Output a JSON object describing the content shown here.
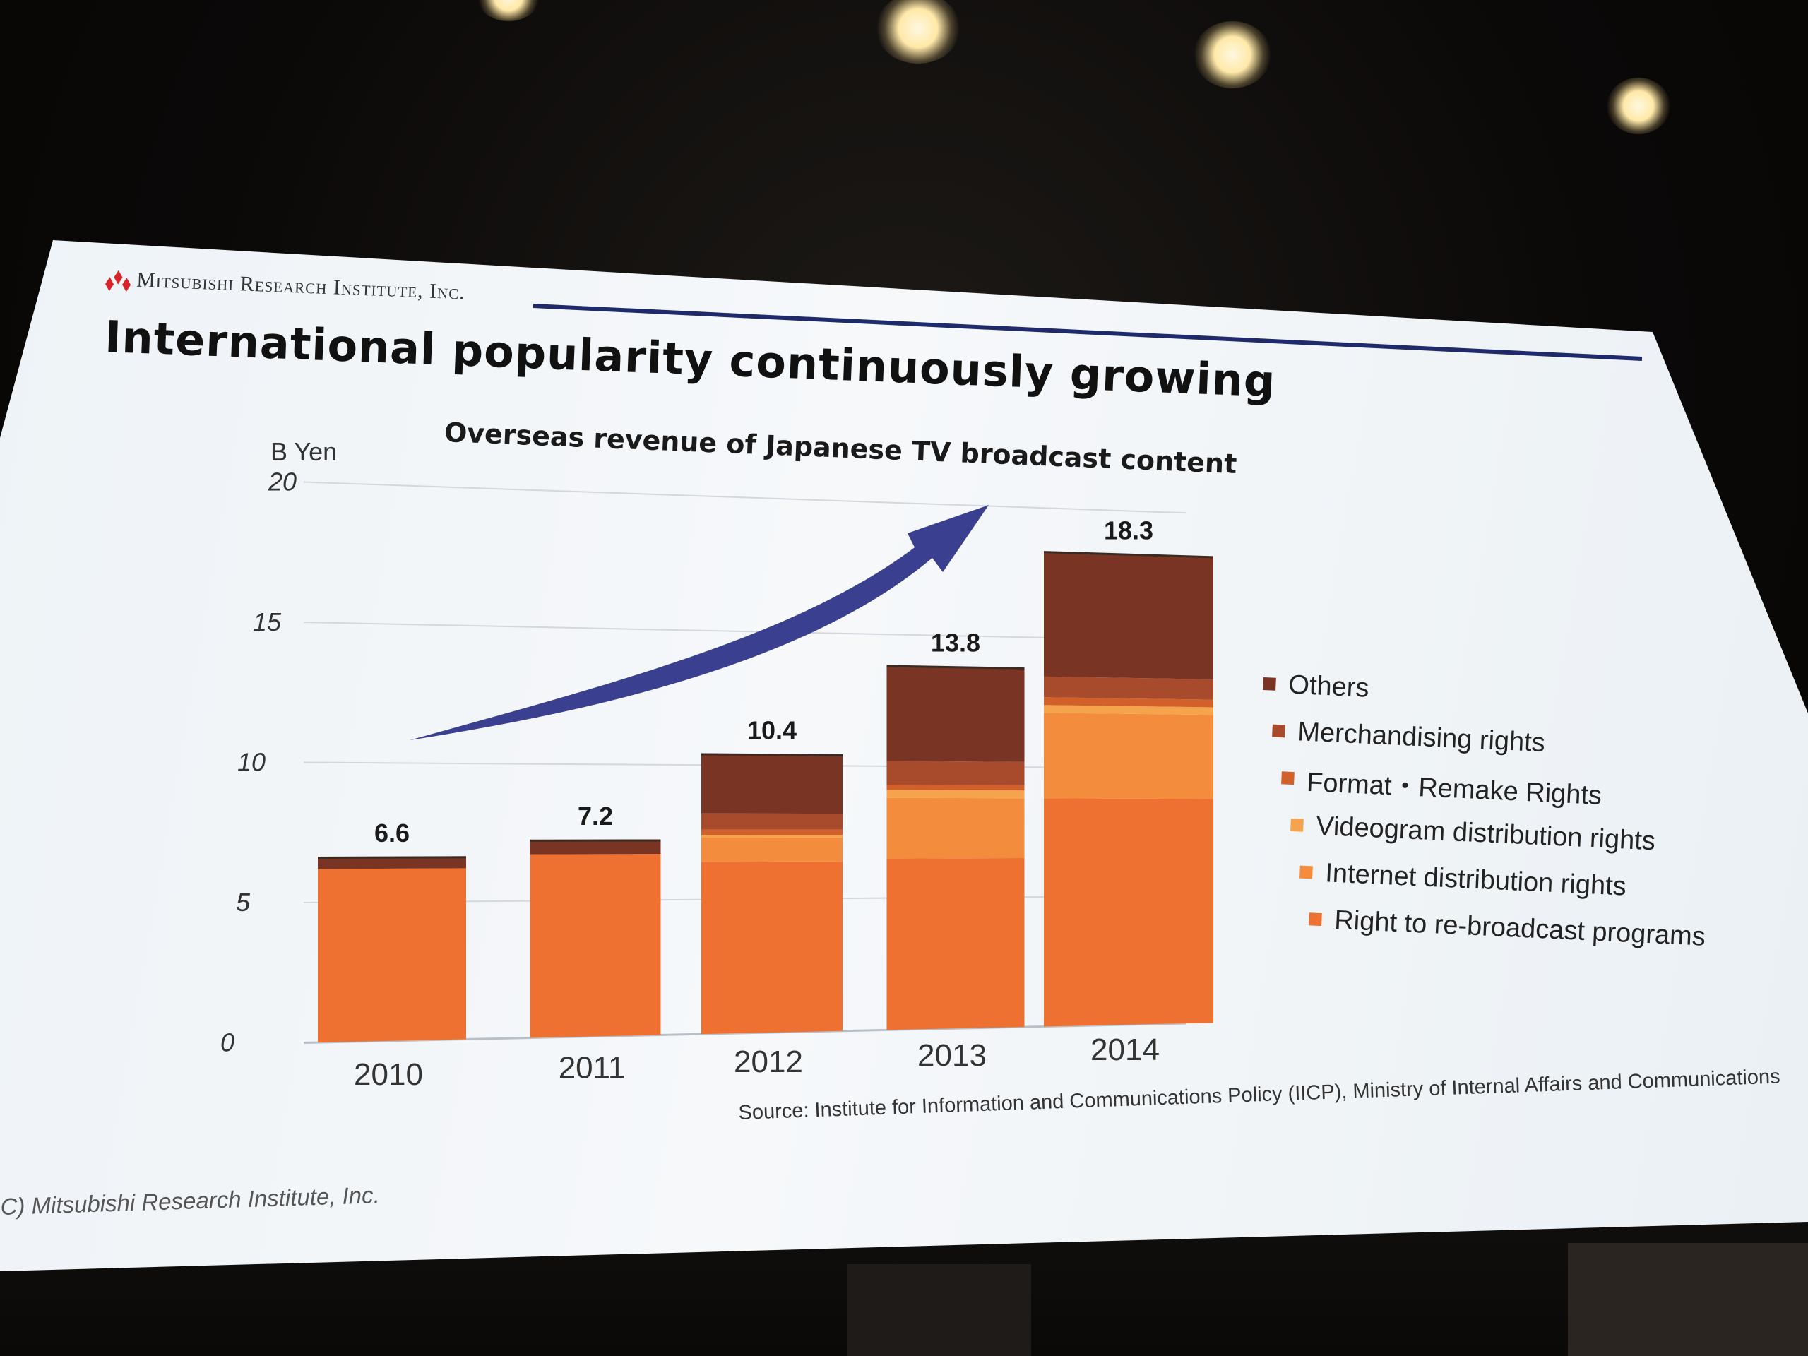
{
  "slide": {
    "brand": "Mitsubishi Research Institute, Inc.",
    "headline": "International popularity continuously growing",
    "source": "Source: Institute for Information and Communications Policy (IICP), Ministry of Internal Affairs and Communications",
    "copyright": "C) Mitsubishi Research Institute, Inc."
  },
  "chart_data": {
    "type": "bar",
    "stacked": true,
    "title": "Overseas revenue of Japanese TV broadcast content",
    "ylabel": "B Yen",
    "xlabel": "",
    "ylim": [
      0,
      20
    ],
    "yticks": [
      "0",
      "5",
      "10",
      "15",
      "20"
    ],
    "categories": [
      "2010",
      "2011",
      "2012",
      "2013",
      "2014"
    ],
    "totals": [
      "6.6",
      "7.2",
      "10.4",
      "13.8",
      "18.3"
    ],
    "series": [
      {
        "name": "Right to re-broadcast programs",
        "values": [
          6.2,
          6.7,
          6.4,
          6.5,
          8.8
        ],
        "color": "#ee7132"
      },
      {
        "name": "Internet distribution rights",
        "values": [
          0.0,
          0.0,
          0.9,
          2.3,
          3.3
        ],
        "color": "#f38c3c"
      },
      {
        "name": "Videogram distribution rights",
        "values": [
          0.0,
          0.0,
          0.1,
          0.3,
          0.3
        ],
        "color": "#f6a34e"
      },
      {
        "name": "Format・Remake Rights",
        "values": [
          0.0,
          0.0,
          0.2,
          0.2,
          0.3
        ],
        "color": "#d2602a"
      },
      {
        "name": "Merchandising rights",
        "values": [
          0.0,
          0.0,
          0.6,
          0.9,
          0.8
        ],
        "color": "#a84a2c"
      },
      {
        "name": "Others",
        "values": [
          0.4,
          0.5,
          2.2,
          3.6,
          4.8
        ],
        "color": "#7a3424"
      }
    ],
    "legend_order": [
      "Others",
      "Merchandising rights",
      "Format・Remake Rights",
      "Videogram distribution rights",
      "Internet distribution rights",
      "Right to re-broadcast programs"
    ],
    "legend_position": "right",
    "grid": true,
    "annotation": "upward trend arrow",
    "arrow_color": "#3b3f8f"
  }
}
